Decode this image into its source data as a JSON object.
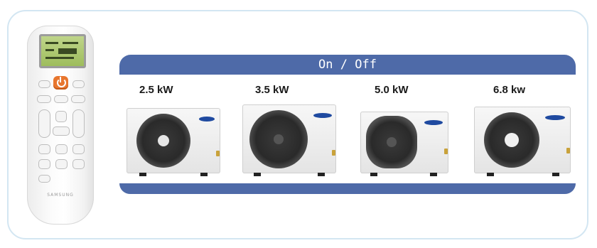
{
  "banner": {
    "title": "On / Off",
    "color": "#4e6aa8"
  },
  "remote": {
    "brand": "SAMSUNG",
    "power_color": "#e8762e"
  },
  "units": [
    {
      "capacity": "2.5 kW"
    },
    {
      "capacity": "3.5 kW"
    },
    {
      "capacity": "5.0 kW"
    },
    {
      "capacity": "6.8 kw"
    }
  ]
}
